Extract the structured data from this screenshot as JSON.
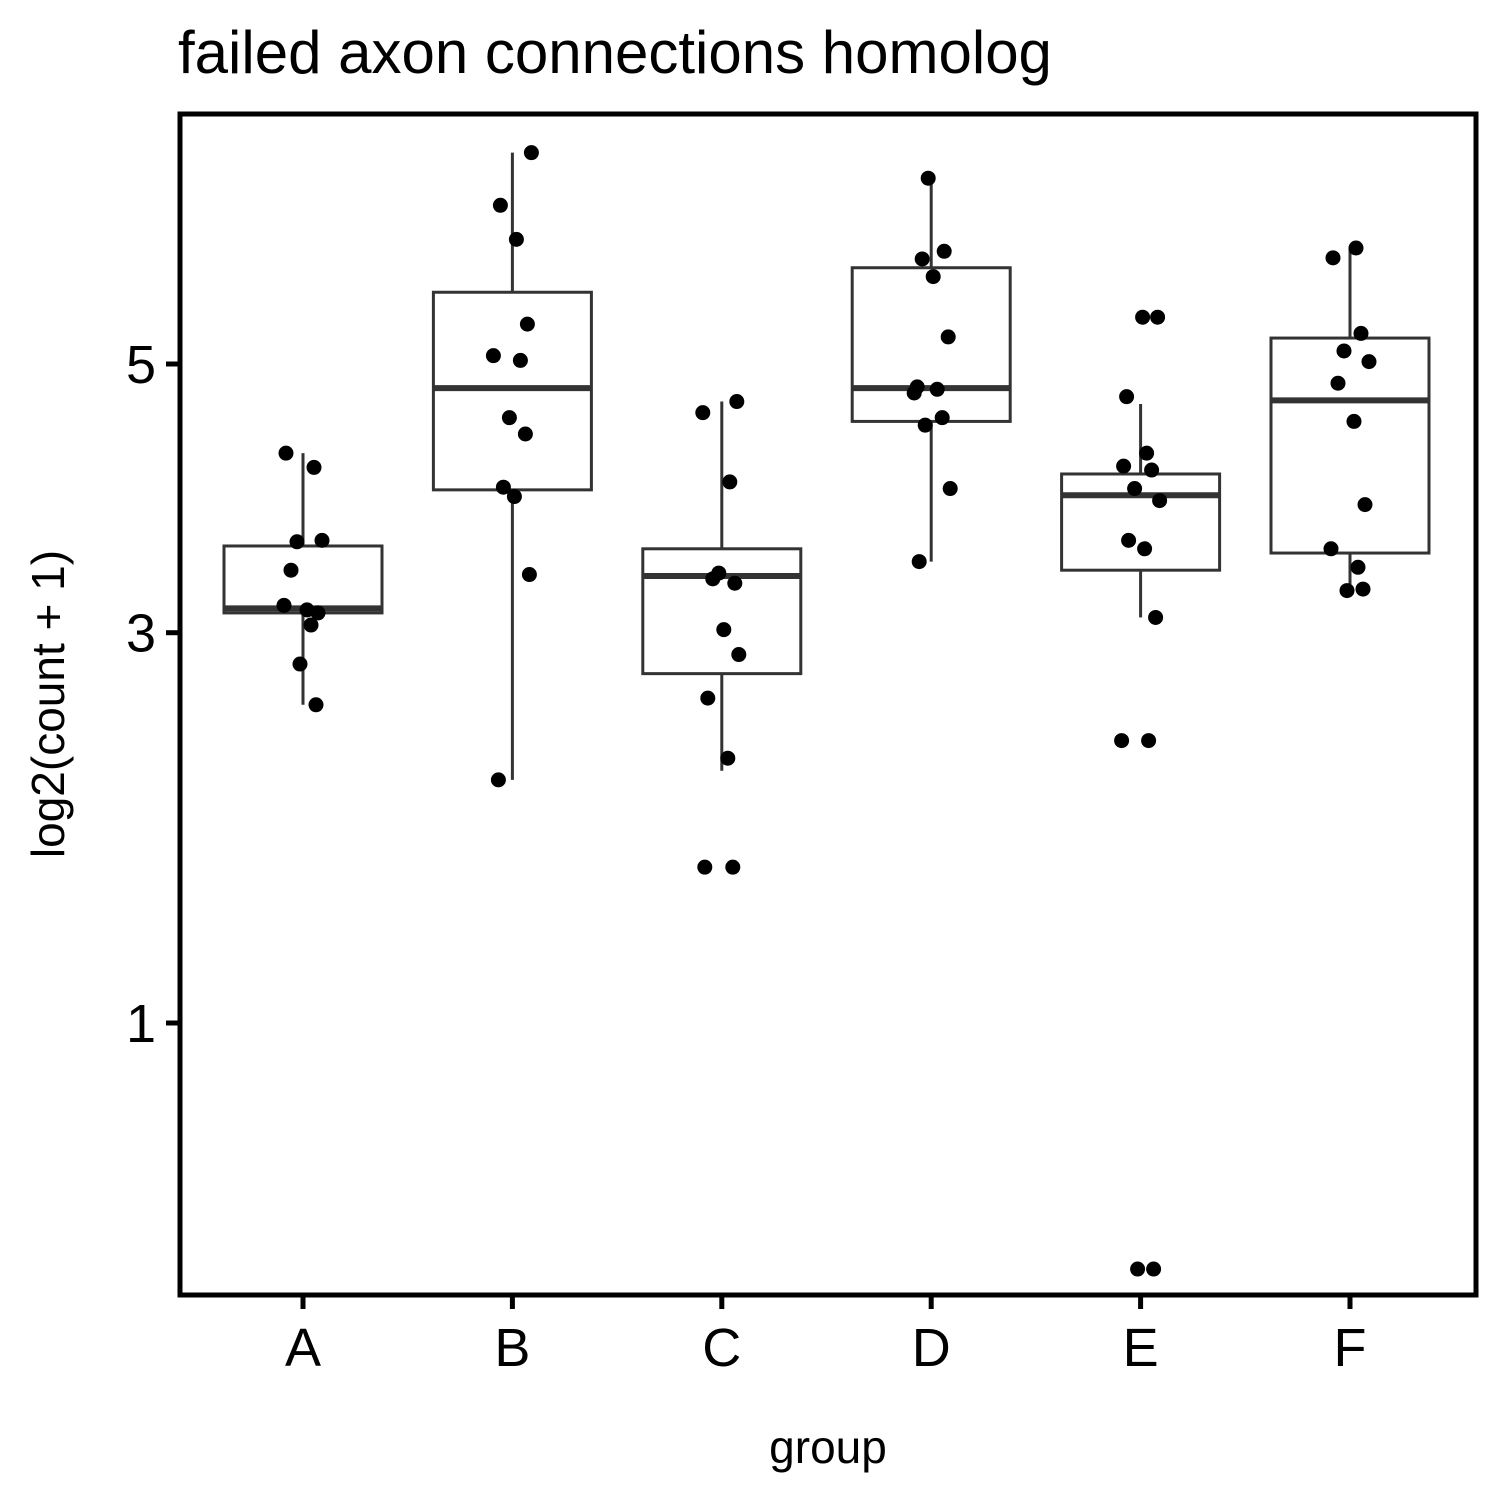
{
  "chart_data": {
    "type": "boxplot",
    "title": "failed axon connections homolog",
    "xlabel": "group",
    "ylabel": "log2(count + 1)",
    "y_scale": "sqrt",
    "ylim": [
      0.2,
      7.2
    ],
    "y_ticks": [
      1,
      3,
      5
    ],
    "grid": false,
    "legend": "none",
    "colors": {
      "box_line": "#333333",
      "point": "#000000",
      "frame": "#000000"
    },
    "categories": [
      "A",
      "B",
      "C",
      "D",
      "E",
      "F"
    ],
    "boxes": [
      {
        "group": "A",
        "min": 2.55,
        "q1": 3.13,
        "median": 3.16,
        "q3": 3.59,
        "max": 4.28
      },
      {
        "group": "B",
        "min": 2.12,
        "q1": 4.0,
        "median": 4.8,
        "q3": 5.62,
        "max": 6.93
      },
      {
        "group": "C",
        "min": 2.17,
        "q1": 2.74,
        "median": 3.38,
        "q3": 3.57,
        "max": 4.69
      },
      {
        "group": "D",
        "min": 3.48,
        "q1": 4.53,
        "median": 4.8,
        "q3": 5.84,
        "max": 6.68
      },
      {
        "group": "E",
        "min": 3.1,
        "q1": 3.42,
        "median": 3.96,
        "q3": 4.12,
        "max": 4.67
      },
      {
        "group": "F",
        "min": 3.29,
        "q1": 3.54,
        "median": 4.7,
        "q3": 5.22,
        "max": 6.02
      }
    ],
    "points": [
      {
        "group": "A",
        "values": [
          4.28,
          4.17,
          3.62,
          3.63,
          3.42,
          3.15,
          3.13,
          3.18,
          3.05,
          2.8,
          2.55
        ]
      },
      {
        "group": "B",
        "values": [
          6.93,
          6.42,
          6.1,
          5.34,
          5.07,
          5.03,
          4.56,
          4.43,
          4.02,
          3.95,
          3.39,
          2.12
        ]
      },
      {
        "group": "C",
        "values": [
          4.69,
          4.6,
          4.06,
          3.4,
          3.33,
          3.36,
          3.02,
          2.86,
          2.59,
          2.24,
          1.67,
          1.67
        ]
      },
      {
        "group": "D",
        "values": [
          6.68,
          5.99,
          5.92,
          5.76,
          5.23,
          4.81,
          4.79,
          4.76,
          4.56,
          4.5,
          4.01,
          3.48
        ]
      },
      {
        "group": "E",
        "values": [
          5.4,
          5.4,
          4.73,
          4.28,
          4.18,
          4.15,
          4.01,
          3.92,
          3.63,
          3.57,
          3.1,
          2.34,
          2.34,
          0.29,
          0.29
        ]
      },
      {
        "group": "F",
        "values": [
          6.02,
          5.93,
          5.26,
          5.11,
          5.02,
          4.84,
          4.53,
          3.89,
          3.57,
          3.44,
          3.28,
          3.29
        ]
      }
    ]
  }
}
